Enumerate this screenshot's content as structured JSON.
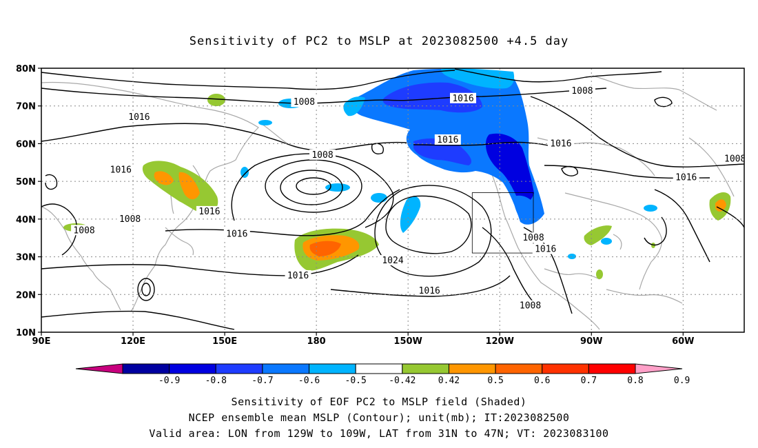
{
  "title": "Sensitivity of PC2 to MSLP at 2023082500 +4.5 day",
  "axes": {
    "lat_ticks": [
      "80N",
      "70N",
      "60N",
      "50N",
      "40N",
      "30N",
      "20N",
      "10N"
    ],
    "lon_ticks": [
      "90E",
      "120E",
      "150E",
      "180",
      "150W",
      "120W",
      "90W",
      "60W"
    ],
    "lon_range": [
      90,
      320
    ],
    "lat_range": [
      10,
      80
    ],
    "grid": "dotted"
  },
  "colorbar": {
    "labels": [
      "-0.9",
      "-0.8",
      "-0.7",
      "-0.6",
      "-0.5",
      "-0.42",
      "0.42",
      "0.5",
      "0.6",
      "0.7",
      "0.8",
      "0.9"
    ],
    "colors": [
      "#c8007e",
      "#0000a0",
      "#0000e0",
      "#1e3cff",
      "#0a78ff",
      "#00b4ff",
      "#ffffff",
      "#96c832",
      "#ff9600",
      "#ff6400",
      "#ff3200",
      "#ff0000",
      "#ffa0c8"
    ]
  },
  "contour_labels": [
    {
      "text": "1016",
      "lon": 228,
      "lat": 72
    },
    {
      "text": "1008",
      "lon": 267,
      "lat": 74
    },
    {
      "text": "1008",
      "lon": 176,
      "lat": 71
    },
    {
      "text": "1016",
      "lon": 223,
      "lat": 61
    },
    {
      "text": "1016",
      "lon": 260,
      "lat": 60
    },
    {
      "text": "1008",
      "lon": 182,
      "lat": 57
    },
    {
      "text": "1016",
      "lon": 122,
      "lat": 67
    },
    {
      "text": "1016",
      "lon": 116,
      "lat": 53
    },
    {
      "text": "1016",
      "lon": 145,
      "lat": 42
    },
    {
      "text": "1008",
      "lon": 119,
      "lat": 40
    },
    {
      "text": "1008",
      "lon": 104,
      "lat": 37
    },
    {
      "text": "1016",
      "lon": 154,
      "lat": 36
    },
    {
      "text": "1016",
      "lon": 301,
      "lat": 51
    },
    {
      "text": "1008",
      "lon": 317,
      "lat": 56
    },
    {
      "text": "1016",
      "lon": 174,
      "lat": 25
    },
    {
      "text": "1024",
      "lon": 205,
      "lat": 29
    },
    {
      "text": "1016",
      "lon": 217,
      "lat": 21
    },
    {
      "text": "1008",
      "lon": 251,
      "lat": 35
    },
    {
      "text": "1016",
      "lon": 255,
      "lat": 32
    },
    {
      "text": "1008",
      "lon": 250,
      "lat": 17
    }
  ],
  "valid_box": {
    "lon": [
      231,
      251
    ],
    "lat": [
      31,
      47
    ]
  },
  "captions": [
    "Sensitivity of EOF PC2 to MSLP field (Shaded)",
    "NCEP ensemble mean MSLP (Contour); unit(mb); IT:2023082500",
    "Valid area: LON from 129W to 109W, LAT from 31N to 47N; VT: 2023083100"
  ]
}
